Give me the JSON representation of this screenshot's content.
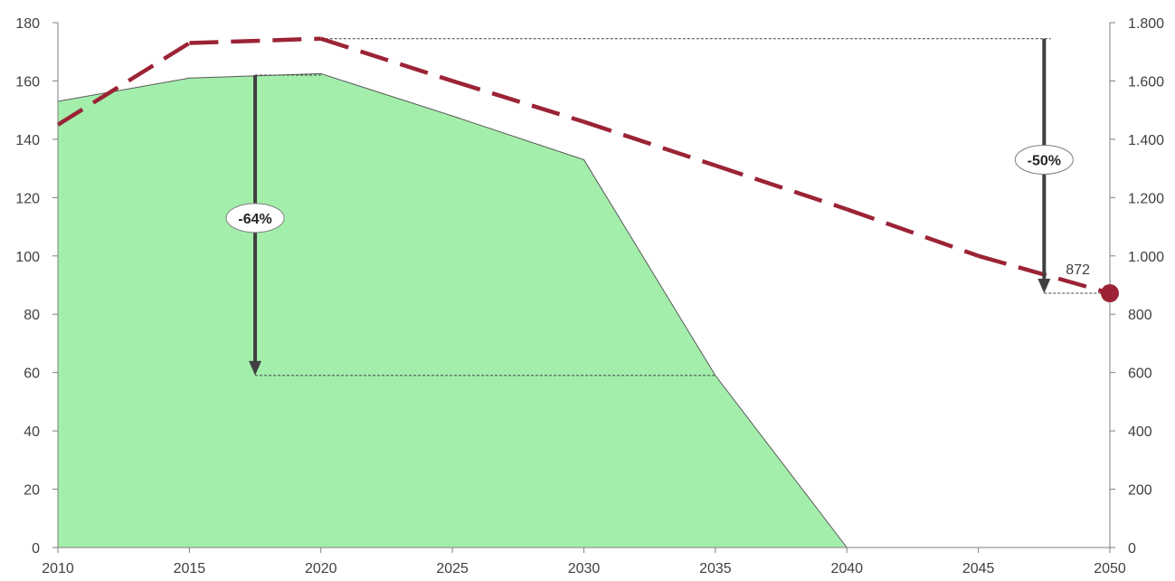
{
  "chart_data": {
    "type": "area",
    "x_ticks": [
      2010,
      2015,
      2020,
      2025,
      2030,
      2035,
      2040,
      2045,
      2050
    ],
    "x_ticks_text": [
      "2010",
      "2015",
      "2020",
      "2025",
      "2030",
      "2035",
      "2040",
      "2045",
      "2050"
    ],
    "y_left_ticks": [
      0,
      20,
      40,
      60,
      80,
      100,
      120,
      140,
      160,
      180
    ],
    "y_left_ticks_text": [
      "0",
      "20",
      "40",
      "60",
      "80",
      "100",
      "120",
      "140",
      "160",
      "180"
    ],
    "y_right_ticks": [
      0,
      200,
      400,
      600,
      800,
      1000,
      1200,
      1400,
      1600,
      1800
    ],
    "y_right_ticks_text": [
      "0",
      "200",
      "400",
      "600",
      "800",
      "1.000",
      "1.200",
      "1.400",
      "1.600",
      "1.800"
    ],
    "xlim": [
      2010,
      2050
    ],
    "ylim_left": [
      0,
      180
    ],
    "ylim_right": [
      0,
      1800
    ],
    "grid": false,
    "series": [
      {
        "type": "area",
        "axis": "left",
        "color": "#a3eeab",
        "x": [
          2010,
          2015,
          2020,
          2025,
          2030,
          2035,
          2040
        ],
        "values": [
          153,
          161,
          162.5,
          148,
          133,
          59,
          0
        ]
      },
      {
        "type": "line",
        "axis": "right",
        "style": "dashed",
        "color": "#9b2335",
        "x": [
          2010,
          2015,
          2020,
          2025,
          2030,
          2035,
          2040,
          2045,
          2050
        ],
        "values": [
          1450,
          1730,
          1745,
          1600,
          1460,
          1310,
          1160,
          1000,
          872
        ]
      }
    ],
    "annotations": [
      {
        "label": "-64%",
        "x": 2017.5,
        "from": 162,
        "to": 59,
        "axis": "left",
        "bubble_at": 113,
        "ref_lines": [
          {
            "x_from": 2017.5,
            "x_to": 2020,
            "value": 162
          },
          {
            "x_from": 2017.5,
            "x_to": 2035,
            "value": 59
          }
        ]
      },
      {
        "label": "-50%",
        "x": 2047.5,
        "from": 1745,
        "to": 872,
        "axis": "right",
        "bubble_at": 1330,
        "ref_lines": [
          {
            "x_from": 2020,
            "x_to": 2047.75,
            "value": 1745
          },
          {
            "x_from": 2047.5,
            "x_to": 2050,
            "value": 872
          }
        ]
      }
    ],
    "end_marker": {
      "x": 2050,
      "value": 872,
      "label": "872",
      "color": "#9b2335"
    }
  }
}
